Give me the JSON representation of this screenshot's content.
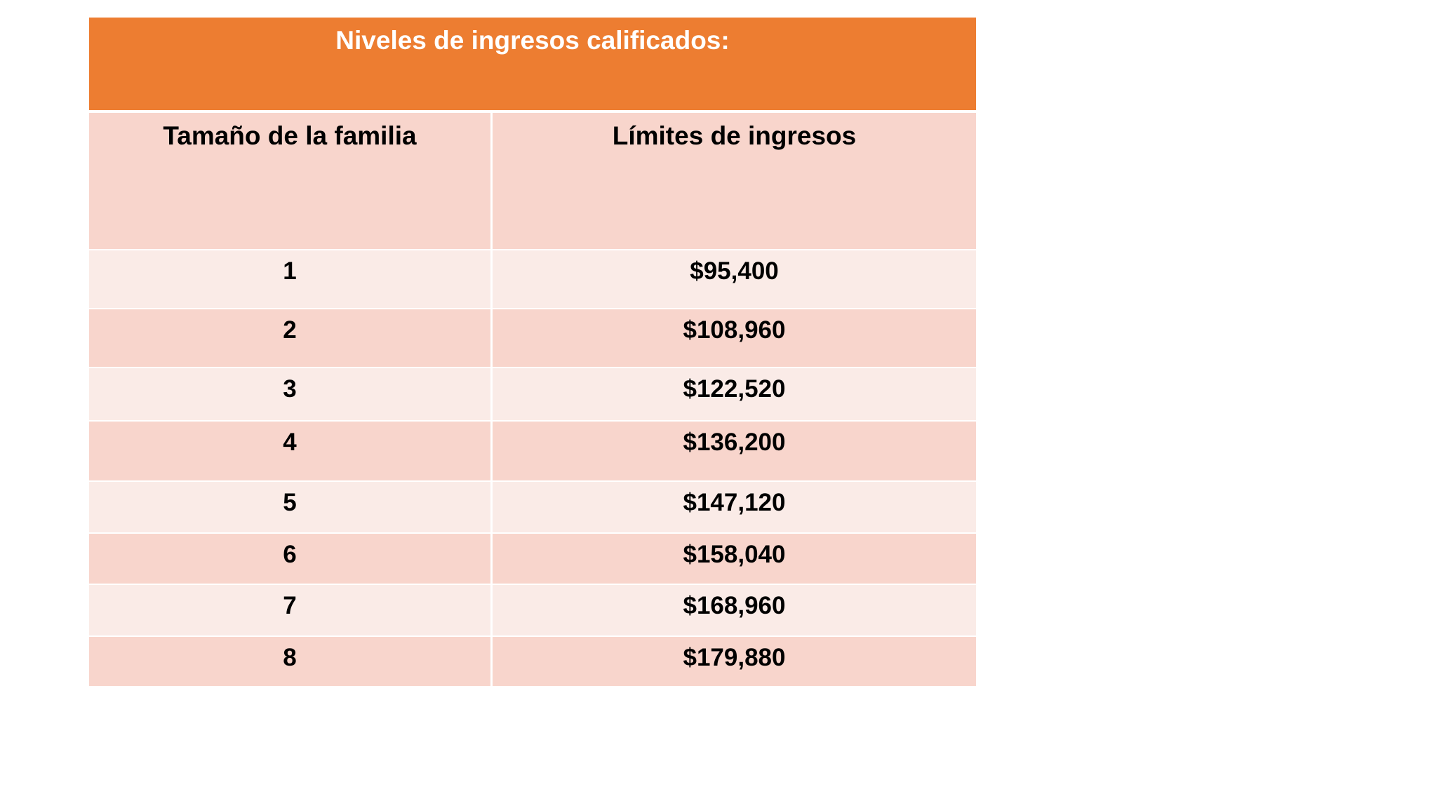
{
  "table": {
    "title": "Niveles de ingresos calificados:",
    "headers": {
      "family_size": "Tamaño de la familia",
      "income_limits": "Límites de ingresos"
    },
    "rows": [
      {
        "size": "1",
        "limit": "$95,400"
      },
      {
        "size": "2",
        "limit": "$108,960"
      },
      {
        "size": "3",
        "limit": "$122,520"
      },
      {
        "size": "4",
        "limit": "$136,200"
      },
      {
        "size": "5",
        "limit": "$147,120"
      },
      {
        "size": "6",
        "limit": "$158,040"
      },
      {
        "size": "7",
        "limit": "$168,960"
      },
      {
        "size": "8",
        "limit": "$179,880"
      }
    ]
  },
  "colors": {
    "title_background": "#ED7D31",
    "row_dark": "#F8D5CC",
    "row_light": "#FAEBE7"
  }
}
